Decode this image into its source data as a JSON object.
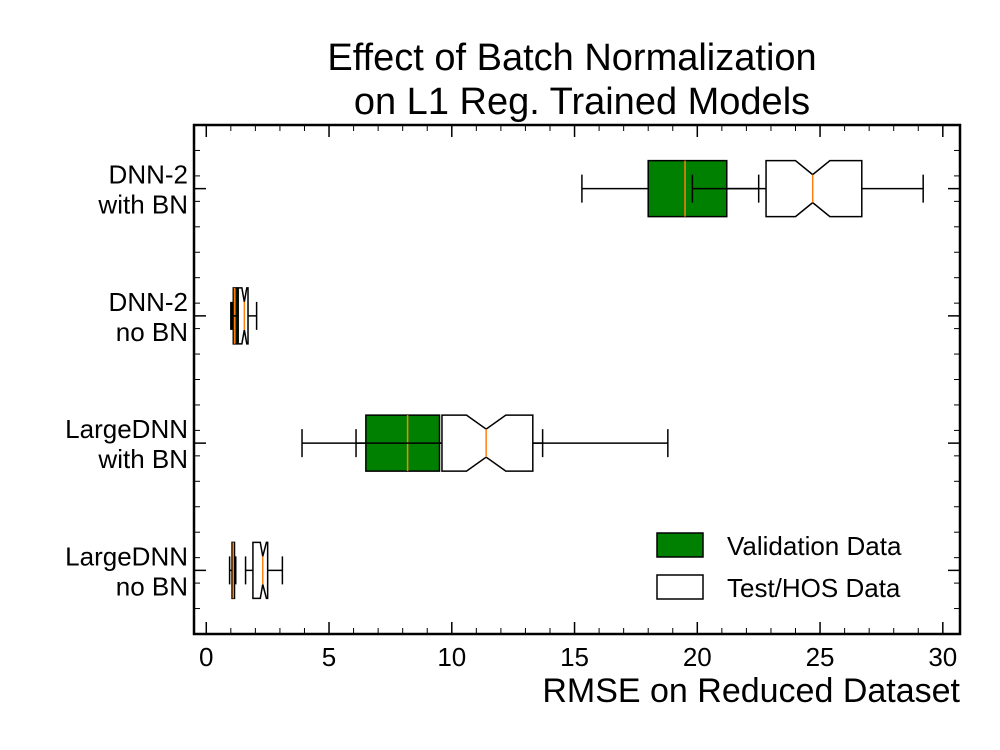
{
  "chart_data": {
    "type": "boxplot",
    "orientation": "horizontal",
    "title_lines": [
      "Effect of Batch Normalization",
      "on L1 Reg. Trained Models"
    ],
    "xlabel": "RMSE on Reduced Dataset",
    "ylabel": "",
    "xlim": [
      -0.5,
      30.7
    ],
    "xticks": [
      0,
      5,
      10,
      15,
      20,
      25,
      30
    ],
    "categories": [
      [
        "DNN-2",
        "with BN"
      ],
      [
        "DNN-2",
        "no BN"
      ],
      [
        "LargeDNN",
        "with BN"
      ],
      [
        "LargeDNN",
        "no BN"
      ]
    ],
    "grid": false,
    "legend_position": "lower-right",
    "series": [
      {
        "name": "Validation Data",
        "color": "#008000",
        "median_color": "#ff7f0e",
        "notched": false,
        "boxes": [
          {
            "whisker_low": 15.3,
            "q1": 18.0,
            "median": 19.5,
            "q3": 21.2,
            "whisker_high": 22.5
          },
          {
            "whisker_low": 1.0,
            "q1": 1.1,
            "median": 1.15,
            "q3": 1.25,
            "whisker_high": 1.35
          },
          {
            "whisker_low": 3.9,
            "q1": 6.5,
            "median": 8.2,
            "q3": 9.5,
            "whisker_high": 13.7
          },
          {
            "whisker_low": 0.95,
            "q1": 1.05,
            "median": 1.1,
            "q3": 1.15,
            "whisker_high": 1.2
          }
        ]
      },
      {
        "name": "Test/HOS Data",
        "color": "#ffffff",
        "median_color": "#ff7f0e",
        "notched": true,
        "boxes": [
          {
            "whisker_low": 19.8,
            "q1": 22.8,
            "median": 24.7,
            "q3": 26.7,
            "notch_low": 24.0,
            "notch_high": 25.4,
            "whisker_high": 29.2
          },
          {
            "whisker_low": 1.05,
            "q1": 1.3,
            "median": 1.55,
            "q3": 1.7,
            "notch_low": 1.45,
            "notch_high": 1.65,
            "whisker_high": 2.05
          },
          {
            "whisker_low": 6.1,
            "q1": 9.6,
            "median": 11.4,
            "q3": 13.3,
            "notch_low": 10.6,
            "notch_high": 12.2,
            "whisker_high": 18.8
          },
          {
            "whisker_low": 1.6,
            "q1": 1.9,
            "median": 2.3,
            "q3": 2.5,
            "notch_low": 2.2,
            "notch_high": 2.45,
            "whisker_high": 3.1
          }
        ]
      }
    ]
  }
}
